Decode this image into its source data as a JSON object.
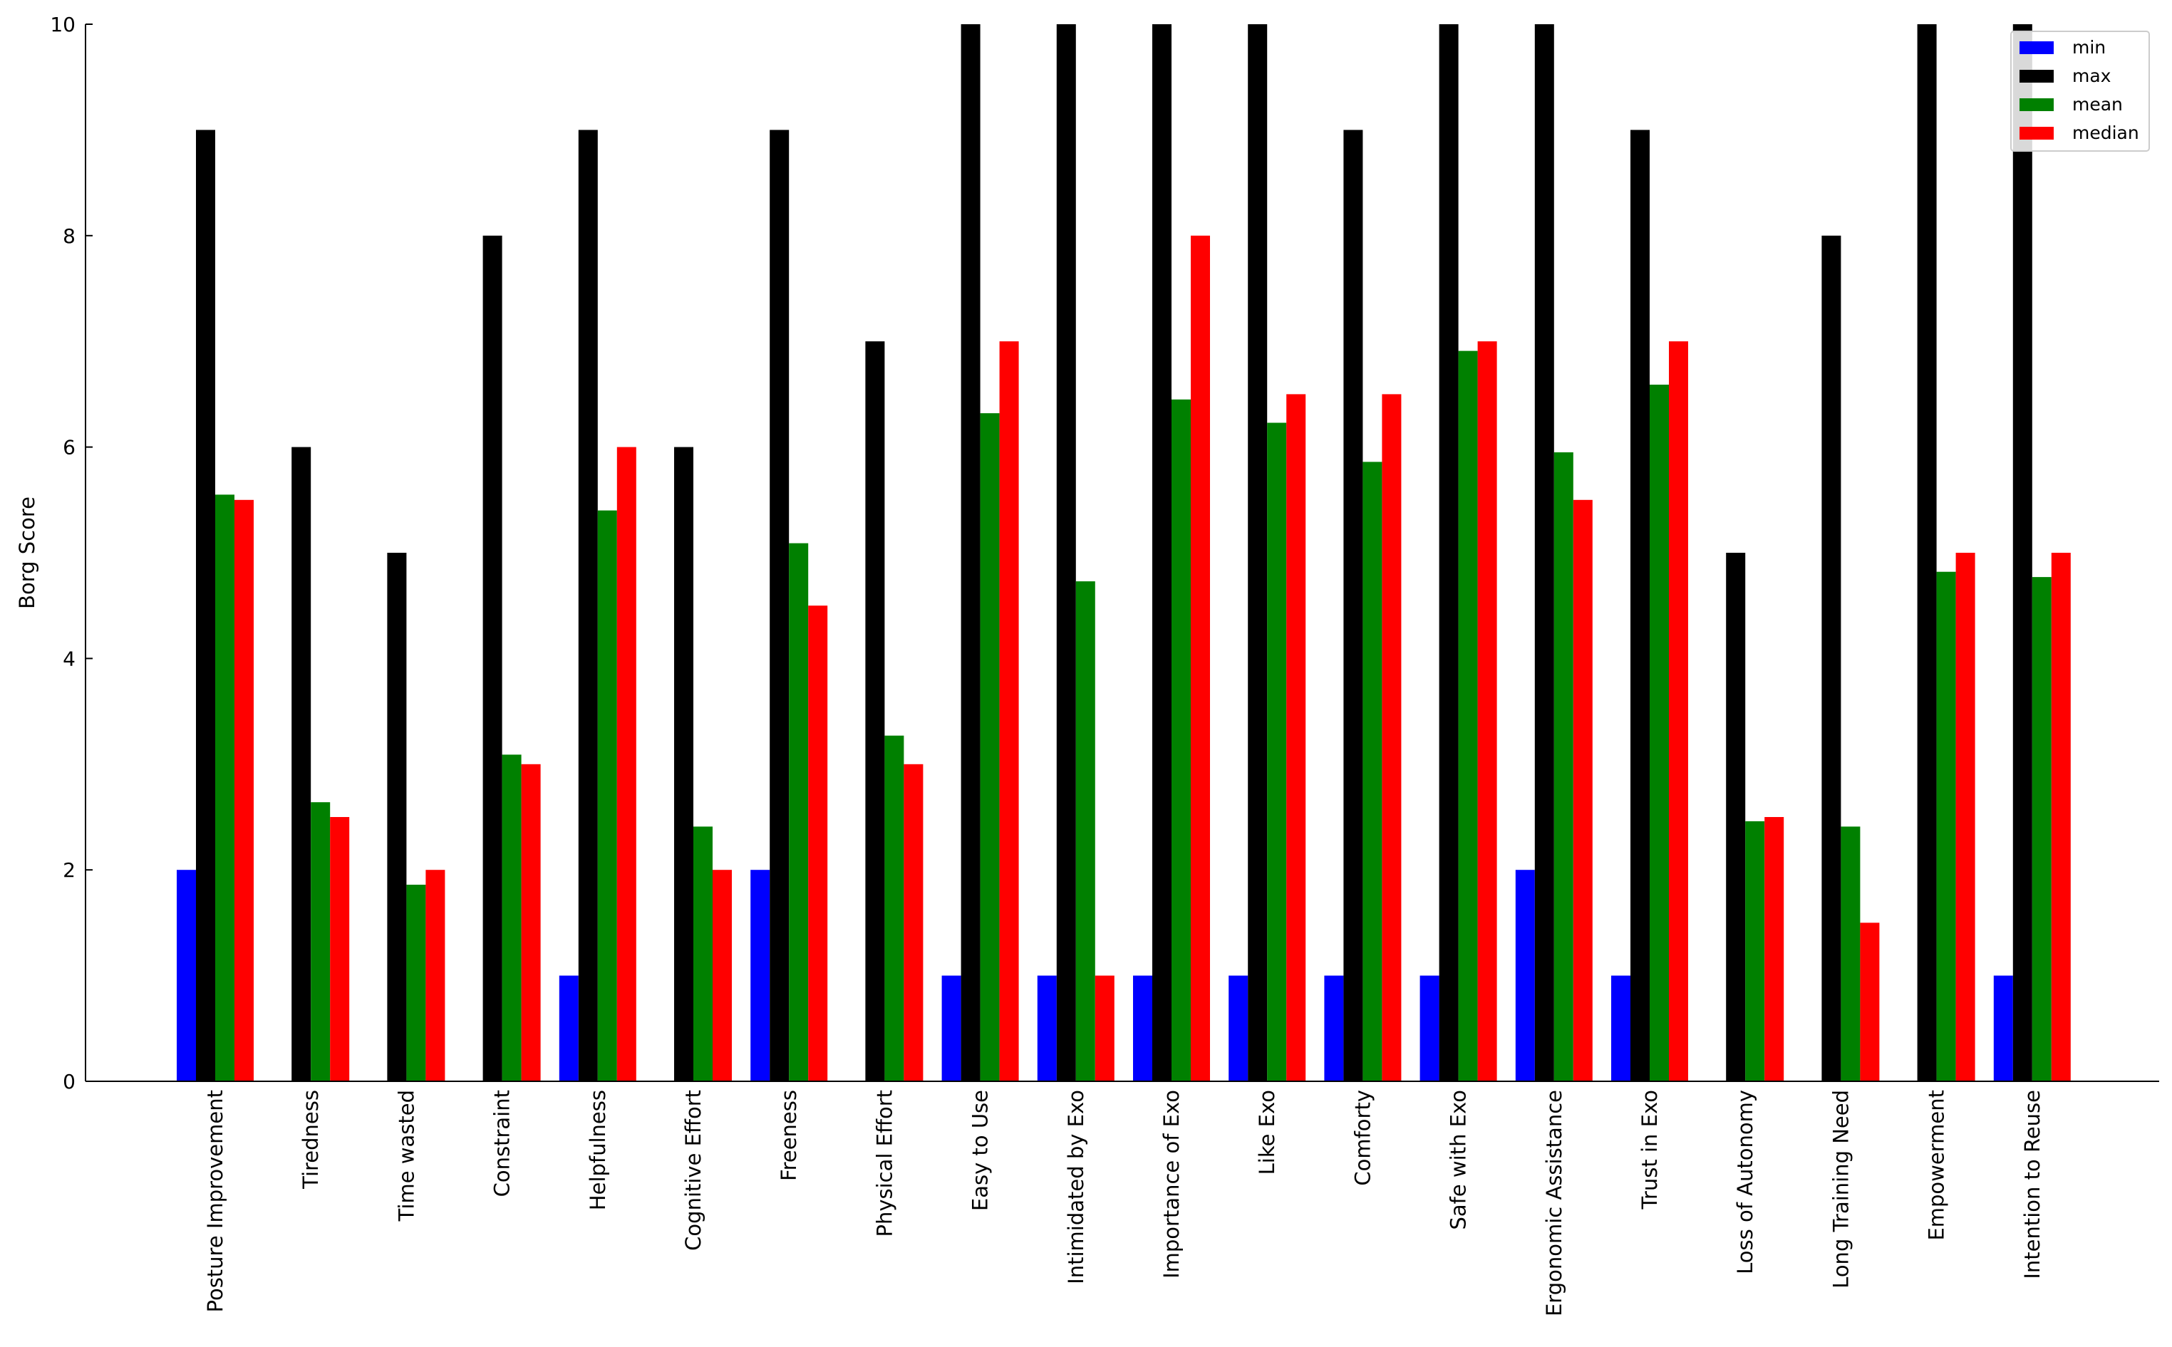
{
  "chart_data": {
    "type": "bar",
    "title": "",
    "xlabel": "",
    "ylabel": "Borg Score",
    "ylim": [
      0,
      10
    ],
    "yticks": [
      "0",
      "2",
      "4",
      "6",
      "8",
      "10"
    ],
    "grid": false,
    "legend_position": "top-right",
    "categories": [
      "Posture Improvement",
      "Tiredness",
      "Time wasted",
      "Constraint",
      "Helpfulness",
      "Cognitive Effort",
      "Freeness",
      "Physical Effort",
      "Easy to Use",
      "Intimidated by Exo",
      "Importance of Exo",
      "Like Exo",
      "Comforty",
      "Safe with Exo",
      "Ergonomic Assistance",
      "Trust in Exo",
      "Loss of Autonomy",
      "Long Training Need",
      "Empowerment",
      "Intention to Reuse"
    ],
    "series": [
      {
        "name": "min",
        "color": "#0000ff",
        "values": [
          2,
          0,
          0,
          0,
          1,
          0,
          2,
          0,
          1,
          1,
          1,
          1,
          1,
          1,
          2,
          1,
          0,
          0,
          0,
          1
        ]
      },
      {
        "name": "max",
        "color": "#000000",
        "values": [
          9,
          6,
          5,
          8,
          9,
          6,
          9,
          7,
          10,
          10,
          10,
          10,
          9,
          10,
          10,
          9,
          5,
          8,
          10,
          10
        ]
      },
      {
        "name": "mean",
        "color": "#008000",
        "values": [
          5.55,
          2.64,
          1.86,
          3.09,
          5.4,
          2.41,
          5.09,
          3.27,
          6.32,
          4.73,
          6.45,
          6.23,
          5.86,
          6.91,
          5.95,
          6.59,
          2.46,
          2.41,
          4.82,
          4.77
        ]
      },
      {
        "name": "median",
        "color": "#ff0000",
        "values": [
          5.5,
          2.5,
          2,
          3,
          6,
          2,
          4.5,
          3,
          7,
          1,
          8,
          6.5,
          6.5,
          7,
          5.5,
          7,
          2.5,
          1.5,
          5,
          5
        ]
      }
    ]
  }
}
